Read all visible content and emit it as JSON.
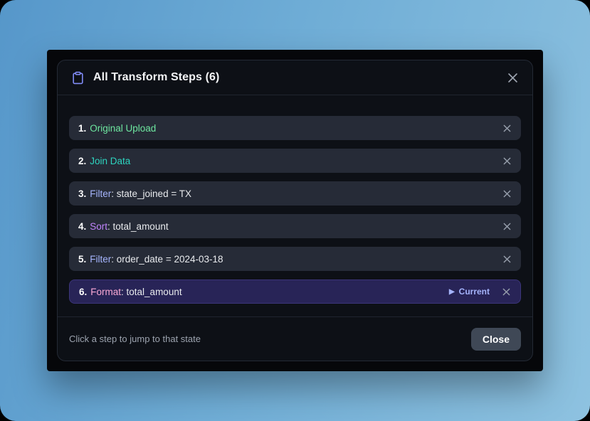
{
  "colors": {
    "accent_indigo": "#818cf8",
    "row_bg": "#262b37",
    "current_row_bg": "#282457",
    "panel_bg": "#0d1016",
    "green": "#6ee7a0",
    "teal": "#2dd4bf",
    "periwinkle": "#a5b4fc",
    "purple": "#c084fc",
    "pink": "#f9a8d4"
  },
  "dialog": {
    "title": "All Transform Steps (6)",
    "title_icon": "clipboard-icon",
    "close_icon": "x-icon"
  },
  "steps": [
    {
      "number": "1.",
      "name": "Original Upload",
      "detail": "",
      "name_color": "#6ee7a0",
      "current": false
    },
    {
      "number": "2.",
      "name": "Join Data",
      "detail": "",
      "name_color": "#2dd4bf",
      "current": false
    },
    {
      "number": "3.",
      "name": "Filter",
      "detail": ": state_joined = TX",
      "name_color": "#a5b4fc",
      "current": false
    },
    {
      "number": "4.",
      "name": "Sort",
      "detail": ": total_amount",
      "name_color": "#c084fc",
      "current": false
    },
    {
      "number": "5.",
      "name": "Filter",
      "detail": ": order_date = 2024-03-18",
      "name_color": "#a5b4fc",
      "current": false
    },
    {
      "number": "6.",
      "name": "Format",
      "detail": ": total_amount",
      "name_color": "#f9a8d4",
      "current": true
    }
  ],
  "current_badge": {
    "marker": "▶",
    "label": "Current"
  },
  "footer": {
    "hint": "Click a step to jump to that state",
    "close_label": "Close"
  }
}
